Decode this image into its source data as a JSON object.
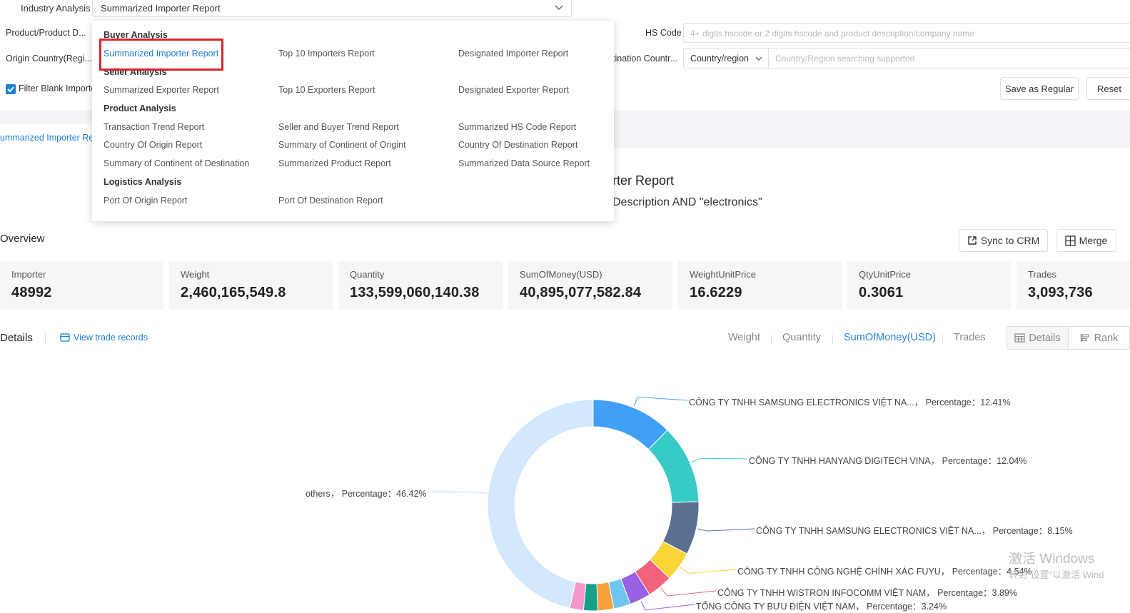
{
  "filters": {
    "industry_label": "Industry Analysis",
    "report_select_value": "Summarized Importer Report",
    "product_label": "Product/Product D...",
    "origin_label": "Origin Country(Regi...",
    "filter_blank_label": "Filter Blank Importe",
    "hs_code_label": "HS Code",
    "hs_code_placeholder": "4+ digits hscode or 2 digits hscode and product description/company name",
    "destination_label": "tination Countr...",
    "country_select_value": "Country/region",
    "country_search_placeholder": "Country/Region searching supported",
    "save_regular_label": "Save as Regular",
    "reset_label": "Reset"
  },
  "breadcrumb_tab": "ummarized Importer Re",
  "report": {
    "title_partial": "rter Report",
    "subtitle_partial": "Description AND \"electronics\""
  },
  "overview": {
    "title": "Overview",
    "sync_crm_label": "Sync to CRM",
    "merge_label": "Merge",
    "cards": [
      {
        "key": "Importer",
        "value": "48992"
      },
      {
        "key": "Weight",
        "value": "2,460,165,549.8"
      },
      {
        "key": "Quantity",
        "value": "133,599,060,140.38"
      },
      {
        "key": "SumOfMoney(USD)",
        "value": "40,895,077,582.84"
      },
      {
        "key": "WeightUnitPrice",
        "value": "16.6229"
      },
      {
        "key": "QtyUnitPrice",
        "value": "0.3061"
      },
      {
        "key": "Trades",
        "value": "3,093,736"
      }
    ]
  },
  "details": {
    "title": "Details",
    "view_records_label": "View trade records",
    "metric_tabs": [
      "Weight",
      "Quantity",
      "SumOfMoney(USD)",
      "Trades"
    ],
    "active_metric": "SumOfMoney(USD)",
    "view_details_label": "Details",
    "view_rank_label": "Rank"
  },
  "dropdown_menu": {
    "buyer_header": "Buyer Analysis",
    "buyer_items": [
      "Summarized Importer Report",
      "Top 10 Importers Report",
      "Designated Importer Report"
    ],
    "seller_header": "Seller Analysis",
    "seller_items": [
      "Summarized Exporter Report",
      "Top 10 Exporters Report",
      "Designated Exporter Report"
    ],
    "product_header": "Product Analysis",
    "product_items": [
      "Transaction Trend Report",
      "Seller and Buyer Trend Report",
      "Summarized HS Code Report",
      "Country Of Origin Report",
      "Summary of Continent of Origint",
      "Country Of Destination Report",
      "Summary of Continent of Destination",
      "Summarized Product Report",
      "Summarized Data Source Report"
    ],
    "logistics_header": "Logistics Analysis",
    "logistics_items": [
      "Port Of Origin Report",
      "Port Of Destination Report"
    ]
  },
  "chart_data": {
    "type": "pie",
    "title": "",
    "slices": [
      {
        "name": "CÔNG TY TNHH SAMSUNG ELECTRONICS VIỆT NA...",
        "percent": 12.41,
        "color": "#3fa0f5",
        "label": "CÔNG TY TNHH SAMSUNG ELECTRONICS VIỆT NA...， Percentage：12.41%"
      },
      {
        "name": "CÔNG TY TNHH HANYANG DIGITECH VINA",
        "percent": 12.04,
        "color": "#36cbc7",
        "label": "CÔNG TY TNHH HANYANG DIGITECH VINA， Percentage：12.04%"
      },
      {
        "name": "CÔNG TY TNHH SAMSUNG ELECTRONICS VIỆT NA...",
        "percent": 8.15,
        "color": "#5b6f91",
        "label": "CÔNG TY TNHH SAMSUNG ELECTRONICS VIỆT NA...， Percentage：8.15%"
      },
      {
        "name": "CÔNG TY TNHH CÔNG NGHỆ CHÍNH XÁC FUYU",
        "percent": 4.54,
        "color": "#fbd437",
        "label": "CÔNG TY TNHH CÔNG NGHỆ CHÍNH XÁC FUYU， Percentage：4.54%"
      },
      {
        "name": "CÔNG TY TNHH WISTRON INFOCOMM VIỆT NAM",
        "percent": 3.89,
        "color": "#f2637b",
        "label": "CÔNG TY TNHH WISTRON INFOCOMM VIỆT NAM， Percentage：3.89%"
      },
      {
        "name": "TỔNG CÔNG TY BƯU ĐIỆN VIỆT NAM",
        "percent": 3.24,
        "color": "#9860e5",
        "label": "TỔNG CÔNG TY BƯU ĐIỆN VIỆT NAM， Percentage：3.24%"
      },
      {
        "name": "",
        "percent": 2.6,
        "color": "#6ec6f0",
        "label": ""
      },
      {
        "name": "",
        "percent": 2.4,
        "color": "#f7a03c",
        "label": ""
      },
      {
        "name": "",
        "percent": 2.2,
        "color": "#17a089",
        "label": ""
      },
      {
        "name": "",
        "percent": 2.1,
        "color": "#f597c9",
        "label": ""
      },
      {
        "name": "others",
        "percent": 46.42,
        "color": "#d3e7fd",
        "label": "others， Percentage：46.42%"
      }
    ]
  },
  "watermark": {
    "line1": "激活 Windows",
    "line2": "转到\"设置\"以激活 Wind"
  }
}
